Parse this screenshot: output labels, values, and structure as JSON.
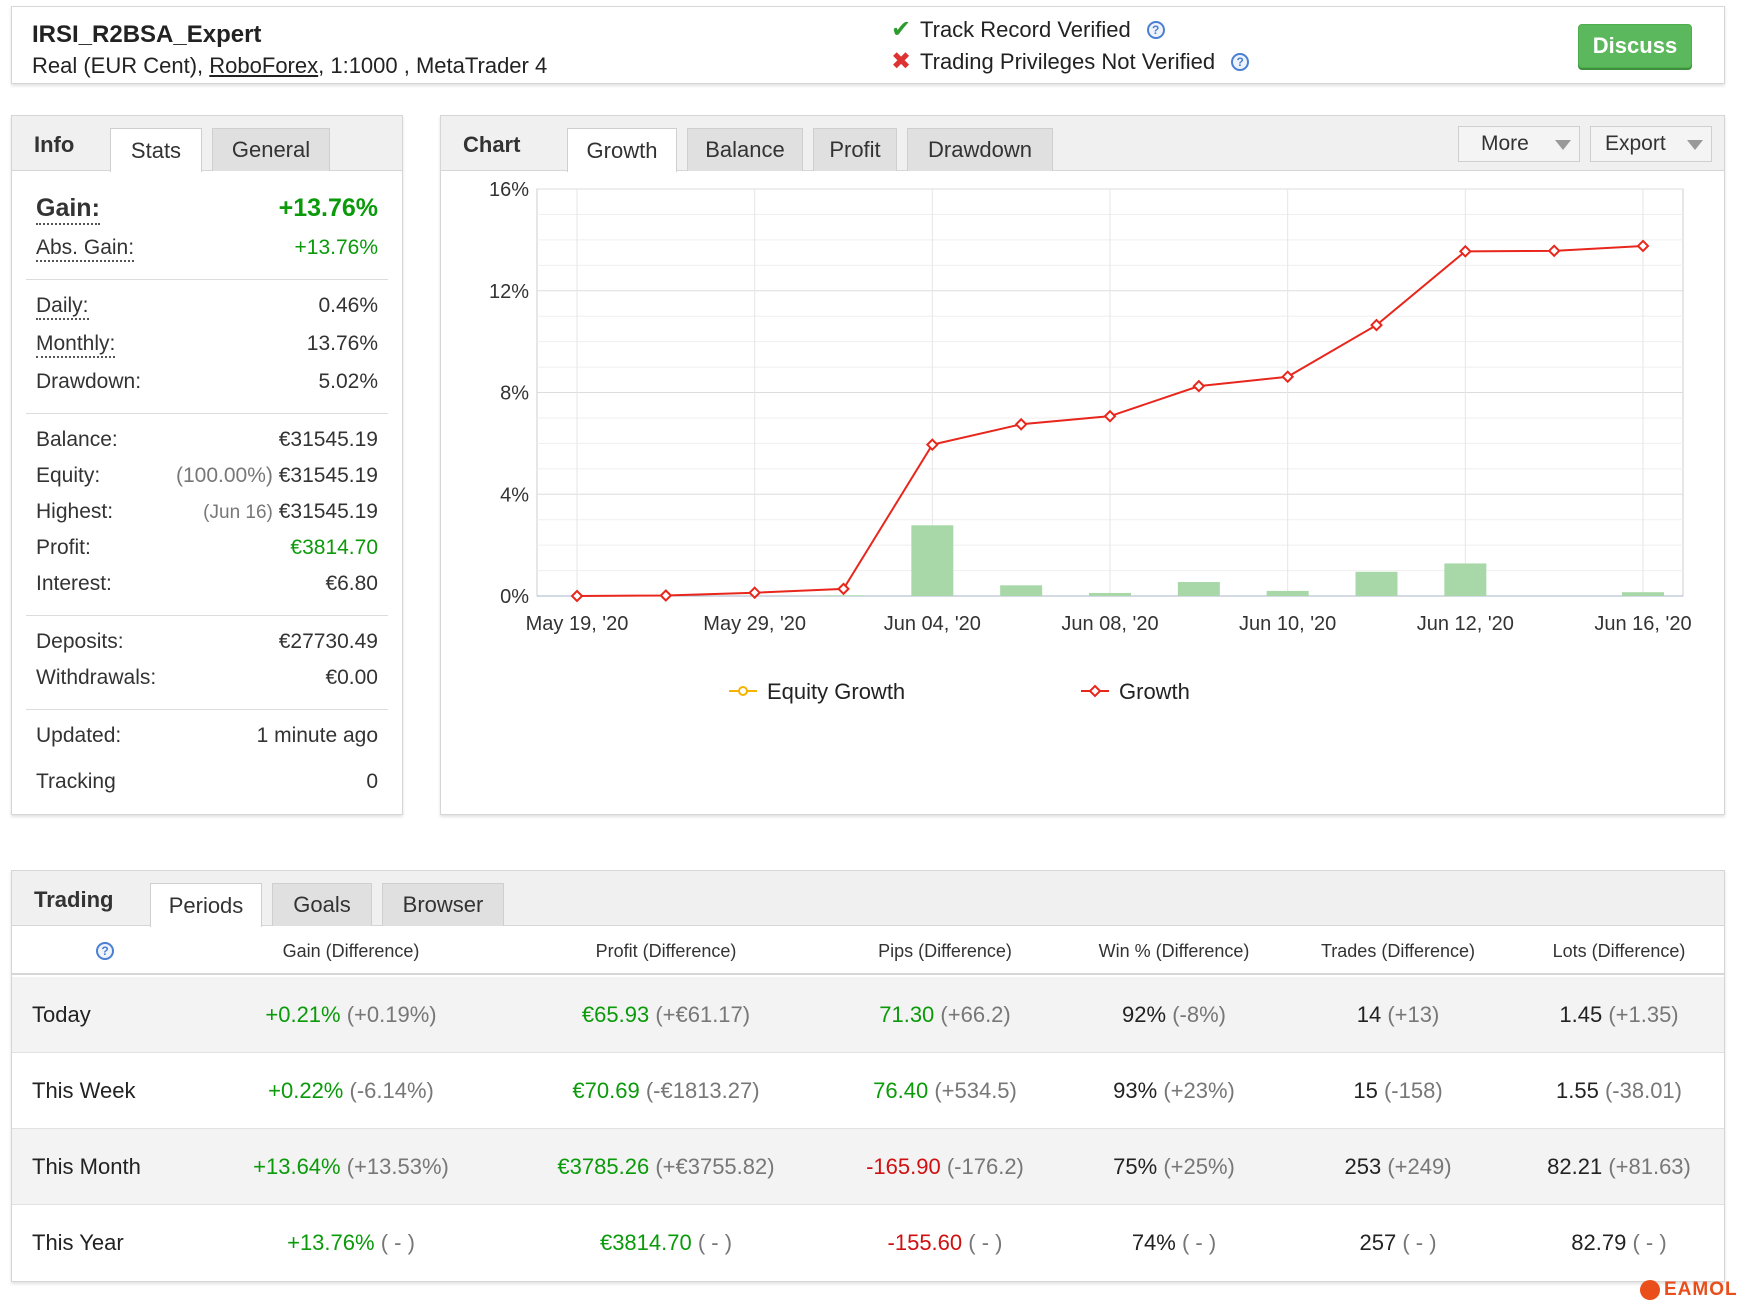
{
  "header": {
    "account_name": "IRSI_R2BSA_Expert",
    "details_prefix": "Real (EUR Cent),",
    "broker": "RoboForex",
    "details_suffix": ", 1:1000 , MetaTrader 4",
    "verified_label": "Track Record Verified",
    "not_verified_label": "Trading Privileges Not Verified",
    "help_glyph": "?",
    "discuss_label": "Discuss"
  },
  "info": {
    "title": "Info",
    "tabs": [
      "Stats",
      "General"
    ],
    "gain_label": "Gain:",
    "gain_value": "+13.76%",
    "abs_gain_label": "Abs. Gain:",
    "abs_gain_value": "+13.76%",
    "daily_label": "Daily:",
    "daily_value": "0.46%",
    "monthly_label": "Monthly:",
    "monthly_value": "13.76%",
    "drawdown_label": "Drawdown:",
    "drawdown_value": "5.02%",
    "balance_label": "Balance:",
    "balance_value": "€31545.19",
    "equity_label": "Equity:",
    "equity_pct": "(100.00%)",
    "equity_value": "€31545.19",
    "highest_label": "Highest:",
    "highest_date": "(Jun 16)",
    "highest_value": "€31545.19",
    "profit_label": "Profit:",
    "profit_value": "€3814.70",
    "interest_label": "Interest:",
    "interest_value": "€6.80",
    "deposits_label": "Deposits:",
    "deposits_value": "€27730.49",
    "withdrawals_label": "Withdrawals:",
    "withdrawals_value": "€0.00",
    "updated_label": "Updated:",
    "updated_value": "1 minute ago",
    "tracking_label": "Tracking",
    "tracking_value": "0"
  },
  "chart_panel": {
    "title": "Chart",
    "tabs": [
      "Growth",
      "Balance",
      "Profit",
      "Drawdown"
    ],
    "more_label": "More",
    "export_label": "Export"
  },
  "chart_data": {
    "type": "line",
    "x": [
      "May 19, '20",
      "May 26, '20",
      "May 29, '20",
      "Jun 03, '20",
      "Jun 04, '20",
      "Jun 05, '20",
      "Jun 08, '20",
      "Jun 09, '20",
      "Jun 10, '20",
      "Jun 11, '20",
      "Jun 12, '20",
      "Jun 15, '20",
      "Jun 16, '20"
    ],
    "tick_labels": [
      "May 19, '20",
      "May 29, '20",
      "Jun 04, '20",
      "Jun 08, '20",
      "Jun 10, '20",
      "Jun 12, '20",
      "Jun 16, '20"
    ],
    "series": [
      {
        "name": "Growth",
        "type": "line",
        "color": "#e8261c",
        "values": [
          0.0,
          0.02,
          0.13,
          0.28,
          5.95,
          6.75,
          7.07,
          8.25,
          8.62,
          10.65,
          13.55,
          13.57,
          13.76
        ]
      },
      {
        "name": "",
        "type": "bar",
        "color": "#a8d8a8",
        "values": [
          0.0,
          0.0,
          0.0,
          0.03,
          2.78,
          0.42,
          0.12,
          0.55,
          0.2,
          0.95,
          1.28,
          0.0,
          0.15
        ]
      }
    ],
    "legend": [
      "Equity Growth",
      "Growth"
    ],
    "legend_colors": [
      "#f5b400",
      "#e8261c"
    ],
    "y_ticks": [
      "0%",
      "4%",
      "8%",
      "12%",
      "16%"
    ],
    "ylim": [
      0,
      16
    ],
    "grid": true,
    "legend_position": "bottom"
  },
  "trading": {
    "title": "Trading",
    "tabs": [
      "Periods",
      "Goals",
      "Browser"
    ],
    "columns": [
      "Gain (Difference)",
      "Profit (Difference)",
      "Pips (Difference)",
      "Win % (Difference)",
      "Trades (Difference)",
      "Lots (Difference)"
    ],
    "rows": [
      {
        "label": "Today",
        "gain": "+0.21%",
        "gain_diff": "(+0.19%)",
        "profit": "€65.93",
        "profit_diff": "(+€61.17)",
        "pips": "71.30",
        "pips_diff": "(+66.2)",
        "win": "92%",
        "win_diff": "(-8%)",
        "trades": "14",
        "trades_diff": "(+13)",
        "lots": "1.45",
        "lots_diff": "(+1.35)"
      },
      {
        "label": "This Week",
        "gain": "+0.22%",
        "gain_diff": "(-6.14%)",
        "profit": "€70.69",
        "profit_diff": "(-€1813.27)",
        "pips": "76.40",
        "pips_diff": "(+534.5)",
        "win": "93%",
        "win_diff": "(+23%)",
        "trades": "15",
        "trades_diff": "(-158)",
        "lots": "1.55",
        "lots_diff": "(-38.01)"
      },
      {
        "label": "This Month",
        "gain": "+13.64%",
        "gain_diff": "(+13.53%)",
        "profit": "€3785.26",
        "profit_diff": "(+€3755.82)",
        "pips": "-165.90",
        "pips_diff": "(-176.2)",
        "win": "75%",
        "win_diff": "(+25%)",
        "trades": "253",
        "trades_diff": "(+249)",
        "lots": "82.21",
        "lots_diff": "(+81.63)"
      },
      {
        "label": "This Year",
        "gain": "+13.76%",
        "gain_diff": "( - )",
        "profit": "€3814.70",
        "profit_diff": "( - )",
        "pips": "-155.60",
        "pips_diff": "( - )",
        "win": "74%",
        "win_diff": "( - )",
        "trades": "257",
        "trades_diff": "( - )",
        "lots": "82.79",
        "lots_diff": "( - )"
      }
    ]
  },
  "watermark": {
    "text": "EAMOL"
  }
}
